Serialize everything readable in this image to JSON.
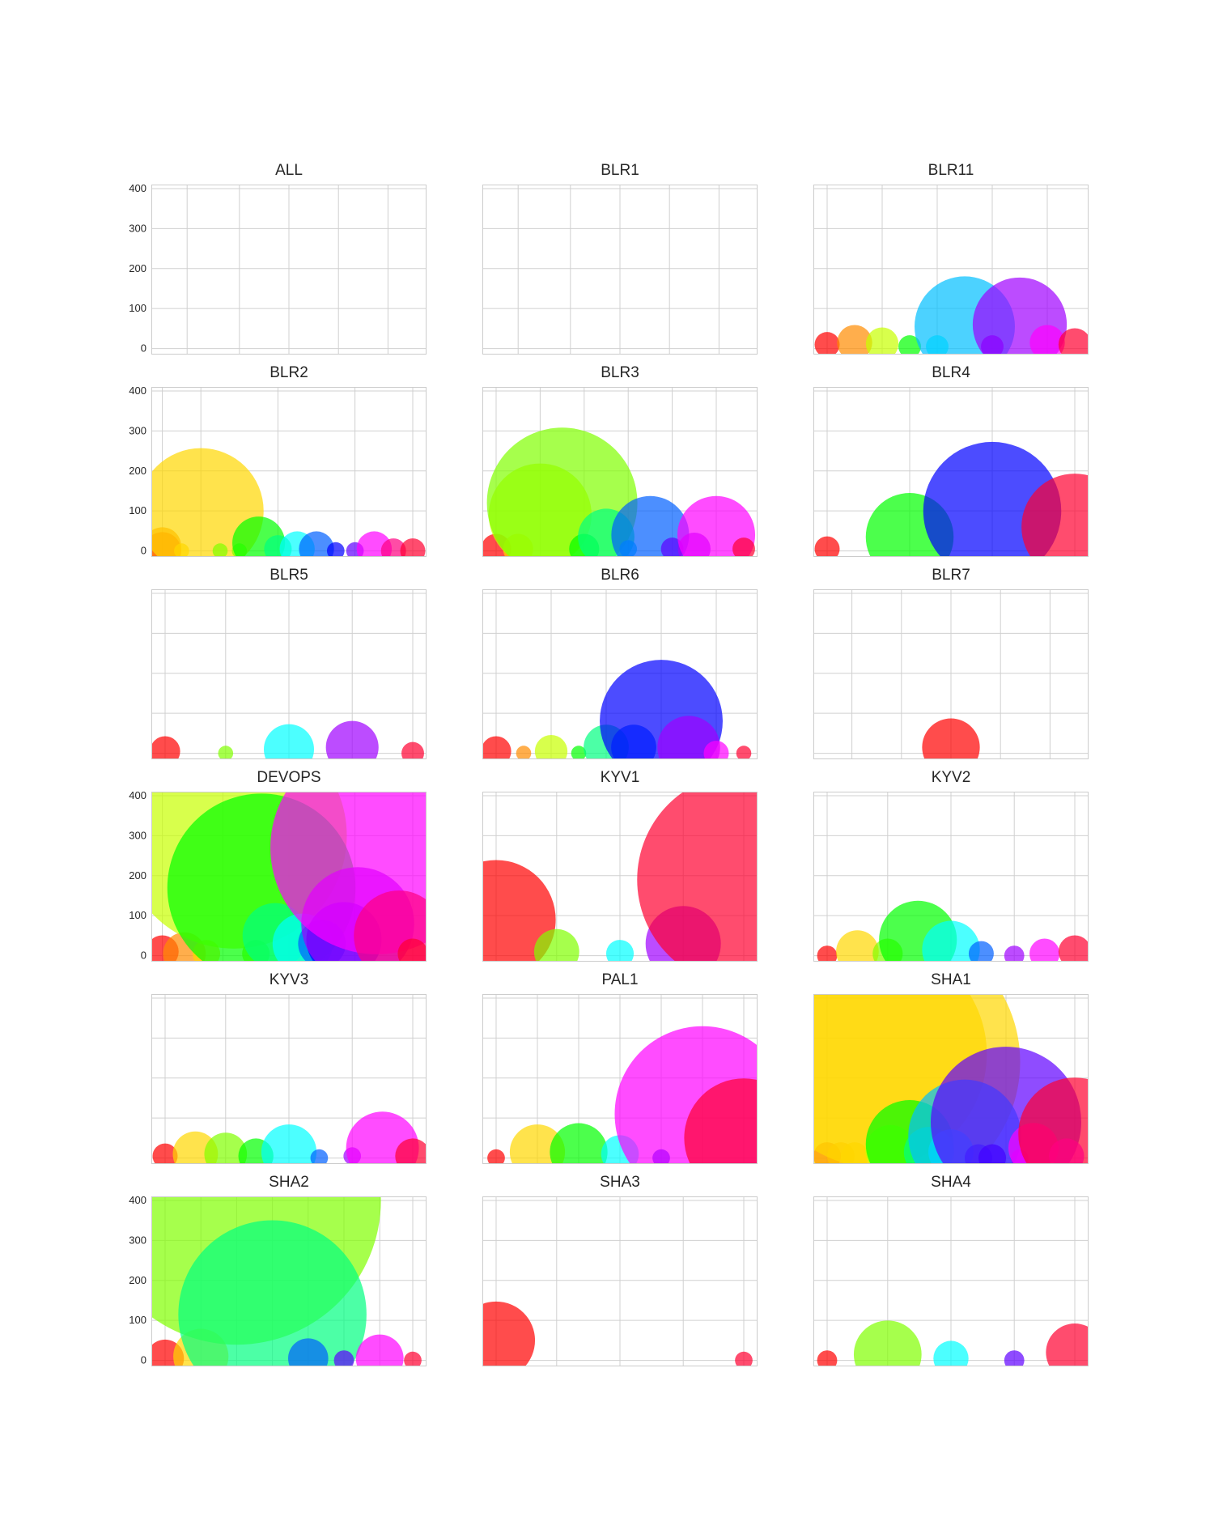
{
  "chart_data": {
    "type": "scatter",
    "style": "bubble-grid",
    "ylim": [
      -15,
      410
    ],
    "yticks": [
      0,
      100,
      200,
      300,
      400
    ],
    "palette": [
      "#ff0000",
      "#ff8c00",
      "#ffd700",
      "#c8ff00",
      "#80ff00",
      "#00ff00",
      "#00ff80",
      "#00ffff",
      "#00bfff",
      "#0060ff",
      "#0000ff",
      "#6000ff",
      "#a000ff",
      "#ff00ff",
      "#ff0080",
      "#ff0030"
    ],
    "panels": [
      {
        "title": "ALL",
        "show_yticks": true,
        "xvlines": [
          0.13,
          0.32,
          0.5,
          0.68,
          0.86
        ],
        "points": []
      },
      {
        "title": "BLR1",
        "show_yticks": false,
        "xvlines": [
          0.13,
          0.32,
          0.5,
          0.68,
          0.86
        ],
        "points": []
      },
      {
        "title": "BLR11",
        "show_yticks": false,
        "xvlines": [
          0.05,
          0.25,
          0.45,
          0.65,
          0.85
        ],
        "points": [
          [
            0.05,
            10,
            0
          ],
          [
            0.15,
            15,
            1
          ],
          [
            0.25,
            12,
            3
          ],
          [
            0.35,
            5,
            5
          ],
          [
            0.45,
            5,
            7
          ],
          [
            0.55,
            55,
            8
          ],
          [
            0.65,
            5,
            11
          ],
          [
            0.75,
            60,
            12
          ],
          [
            0.85,
            15,
            13
          ],
          [
            0.95,
            10,
            15
          ]
        ],
        "sizes": [
          20,
          28,
          26,
          18,
          18,
          80,
          18,
          75,
          28,
          26
        ]
      },
      {
        "title": "BLR2",
        "show_yticks": true,
        "xvlines": [
          0.04,
          0.18,
          0.46,
          0.74,
          0.95
        ],
        "points": [
          [
            0.04,
            0,
            0
          ],
          [
            0.04,
            12,
            1
          ],
          [
            0.11,
            0,
            2
          ],
          [
            0.18,
            100,
            2
          ],
          [
            0.25,
            0,
            4
          ],
          [
            0.32,
            0,
            4
          ],
          [
            0.39,
            20,
            5
          ],
          [
            0.46,
            5,
            6
          ],
          [
            0.53,
            5,
            7
          ],
          [
            0.6,
            5,
            9
          ],
          [
            0.67,
            0,
            10
          ],
          [
            0.74,
            0,
            11
          ],
          [
            0.81,
            5,
            13
          ],
          [
            0.88,
            0,
            14
          ],
          [
            0.95,
            0,
            15
          ]
        ],
        "sizes": [
          30,
          30,
          12,
          100,
          12,
          12,
          42,
          22,
          28,
          28,
          14,
          14,
          28,
          20,
          20
        ]
      },
      {
        "title": "BLR3",
        "show_yticks": false,
        "xvlines": [
          0.05,
          0.21,
          0.37,
          0.53,
          0.69,
          0.85
        ],
        "points": [
          [
            0.05,
            5,
            0
          ],
          [
            0.13,
            5,
            2
          ],
          [
            0.21,
            90,
            3
          ],
          [
            0.29,
            120,
            4
          ],
          [
            0.37,
            5,
            5
          ],
          [
            0.45,
            35,
            6
          ],
          [
            0.53,
            5,
            8
          ],
          [
            0.61,
            40,
            9
          ],
          [
            0.69,
            5,
            11
          ],
          [
            0.77,
            5,
            12
          ],
          [
            0.85,
            40,
            13
          ],
          [
            0.95,
            5,
            15
          ]
        ],
        "sizes": [
          24,
          24,
          82,
          120,
          24,
          45,
          14,
          62,
          18,
          26,
          62,
          18
        ]
      },
      {
        "title": "BLR4",
        "show_yticks": false,
        "xvlines": [
          0.05,
          0.35,
          0.65,
          0.95
        ],
        "points": [
          [
            0.05,
            5,
            0
          ],
          [
            0.35,
            35,
            5
          ],
          [
            0.65,
            100,
            10
          ],
          [
            0.95,
            60,
            15
          ]
        ],
        "sizes": [
          20,
          70,
          110,
          85
        ]
      },
      {
        "title": "BLR5",
        "show_yticks": false,
        "xvlines": [
          0.05,
          0.27,
          0.5,
          0.73,
          0.95
        ],
        "points": [
          [
            0.05,
            5,
            0
          ],
          [
            0.27,
            0,
            4
          ],
          [
            0.5,
            10,
            7
          ],
          [
            0.73,
            15,
            12
          ],
          [
            0.95,
            0,
            15
          ]
        ],
        "sizes": [
          24,
          12,
          40,
          42,
          18
        ]
      },
      {
        "title": "BLR6",
        "show_yticks": false,
        "xvlines": [
          0.05,
          0.25,
          0.45,
          0.65,
          0.85
        ],
        "points": [
          [
            0.05,
            5,
            0
          ],
          [
            0.15,
            0,
            1
          ],
          [
            0.25,
            5,
            3
          ],
          [
            0.35,
            0,
            5
          ],
          [
            0.45,
            15,
            6
          ],
          [
            0.55,
            15,
            9
          ],
          [
            0.65,
            80,
            10
          ],
          [
            0.75,
            15,
            12
          ],
          [
            0.85,
            0,
            13
          ],
          [
            0.95,
            0,
            15
          ]
        ],
        "sizes": [
          24,
          12,
          26,
          12,
          36,
          36,
          98,
          50,
          20,
          12
        ]
      },
      {
        "title": "BLR7",
        "show_yticks": false,
        "xvlines": [
          0.14,
          0.32,
          0.5,
          0.68,
          0.86
        ],
        "points": [
          [
            0.5,
            15,
            0
          ]
        ],
        "sizes": [
          46
        ]
      },
      {
        "title": "DEVOPS",
        "show_yticks": true,
        "xvlines": [
          0.04,
          0.26,
          0.5,
          0.74,
          0.95
        ],
        "points": [
          [
            0.04,
            10,
            0
          ],
          [
            0.12,
            5,
            1
          ],
          [
            0.2,
            5,
            2
          ],
          [
            0.3,
            300,
            3
          ],
          [
            0.38,
            5,
            4
          ],
          [
            0.4,
            170,
            5
          ],
          [
            0.45,
            50,
            6
          ],
          [
            0.55,
            30,
            7
          ],
          [
            0.62,
            30,
            9
          ],
          [
            0.7,
            40,
            10
          ],
          [
            0.75,
            80,
            12
          ],
          [
            0.82,
            270,
            13
          ],
          [
            0.9,
            50,
            14
          ],
          [
            0.95,
            5,
            15
          ]
        ],
        "sizes": [
          26,
          34,
          22,
          180,
          22,
          150,
          52,
          48,
          38,
          60,
          90,
          170,
          72,
          24
        ]
      },
      {
        "title": "KYV1",
        "show_yticks": false,
        "xvlines": [
          0.05,
          0.27,
          0.5,
          0.73,
          0.95
        ],
        "points": [
          [
            0.05,
            90,
            0
          ],
          [
            0.27,
            10,
            4
          ],
          [
            0.5,
            5,
            7
          ],
          [
            0.73,
            30,
            12
          ],
          [
            0.95,
            190,
            15
          ]
        ],
        "sizes": [
          95,
          36,
          22,
          60,
          170
        ]
      },
      {
        "title": "KYV2",
        "show_yticks": false,
        "xvlines": [
          0.05,
          0.27,
          0.5,
          0.73,
          0.95
        ],
        "points": [
          [
            0.05,
            0,
            0
          ],
          [
            0.16,
            10,
            2
          ],
          [
            0.27,
            5,
            4
          ],
          [
            0.38,
            40,
            5
          ],
          [
            0.5,
            15,
            7
          ],
          [
            0.61,
            5,
            9
          ],
          [
            0.73,
            0,
            12
          ],
          [
            0.84,
            5,
            13
          ],
          [
            0.95,
            10,
            15
          ]
        ],
        "sizes": [
          16,
          34,
          24,
          62,
          46,
          20,
          16,
          24,
          26
        ]
      },
      {
        "title": "KYV3",
        "show_yticks": false,
        "xvlines": [
          0.05,
          0.27,
          0.5,
          0.73,
          0.95
        ],
        "points": [
          [
            0.05,
            5,
            0
          ],
          [
            0.16,
            10,
            2
          ],
          [
            0.27,
            10,
            4
          ],
          [
            0.38,
            5,
            5
          ],
          [
            0.5,
            15,
            7
          ],
          [
            0.61,
            0,
            9
          ],
          [
            0.73,
            5,
            12
          ],
          [
            0.84,
            25,
            13
          ],
          [
            0.95,
            5,
            15
          ]
        ],
        "sizes": [
          20,
          36,
          34,
          28,
          44,
          14,
          14,
          58,
          28
        ]
      },
      {
        "title": "PAL1",
        "show_yticks": false,
        "xvlines": [
          0.05,
          0.2,
          0.35,
          0.5,
          0.65,
          0.8,
          0.95
        ],
        "points": [
          [
            0.05,
            0,
            0
          ],
          [
            0.2,
            15,
            2
          ],
          [
            0.35,
            15,
            5
          ],
          [
            0.5,
            10,
            7
          ],
          [
            0.65,
            0,
            10
          ],
          [
            0.8,
            110,
            13
          ],
          [
            0.95,
            50,
            15
          ]
        ],
        "sizes": [
          14,
          44,
          46,
          30,
          14,
          140,
          95
        ]
      },
      {
        "title": "SHA1",
        "show_yticks": false,
        "xvlines": [
          0.05,
          0.7,
          0.95
        ],
        "points": [
          [
            0.05,
            5,
            0
          ],
          [
            0.1,
            5,
            1
          ],
          [
            0.15,
            5,
            2
          ],
          [
            0.22,
            260,
            2
          ],
          [
            0.25,
            240,
            2
          ],
          [
            0.28,
            20,
            3
          ],
          [
            0.35,
            35,
            5
          ],
          [
            0.42,
            15,
            6
          ],
          [
            0.5,
            15,
            7
          ],
          [
            0.55,
            55,
            8
          ],
          [
            0.6,
            0,
            9
          ],
          [
            0.65,
            0,
            10
          ],
          [
            0.7,
            90,
            11
          ],
          [
            0.75,
            0,
            12
          ],
          [
            0.8,
            25,
            13
          ],
          [
            0.95,
            60,
            15
          ],
          [
            0.92,
            5,
            14
          ]
        ],
        "sizes": [
          22,
          22,
          22,
          180,
          220,
          40,
          70,
          40,
          36,
          90,
          22,
          22,
          120,
          14,
          40,
          90,
          28
        ]
      },
      {
        "title": "SHA2",
        "show_yticks": true,
        "xvlines": [
          0.05,
          0.18,
          0.31,
          0.44,
          0.57,
          0.7,
          0.83,
          0.95
        ],
        "points": [
          [
            0.05,
            5,
            0
          ],
          [
            0.18,
            10,
            2
          ],
          [
            0.31,
            400,
            4
          ],
          [
            0.44,
            115,
            6
          ],
          [
            0.57,
            5,
            9
          ],
          [
            0.7,
            0,
            11
          ],
          [
            0.83,
            5,
            13
          ],
          [
            0.95,
            0,
            15
          ]
        ],
        "sizes": [
          30,
          44,
          230,
          150,
          32,
          16,
          38,
          14
        ]
      },
      {
        "title": "SHA3",
        "show_yticks": false,
        "xvlines": [
          0.05,
          0.27,
          0.5,
          0.73,
          0.95
        ],
        "points": [
          [
            0.05,
            50,
            0
          ],
          [
            0.95,
            0,
            15
          ]
        ],
        "sizes": [
          62,
          14
        ]
      },
      {
        "title": "SHA4",
        "show_yticks": false,
        "xvlines": [
          0.05,
          0.27,
          0.5,
          0.73,
          0.95
        ],
        "points": [
          [
            0.05,
            0,
            0
          ],
          [
            0.27,
            15,
            4
          ],
          [
            0.5,
            5,
            7
          ],
          [
            0.73,
            0,
            11
          ],
          [
            0.95,
            20,
            15
          ]
        ],
        "sizes": [
          16,
          54,
          28,
          16,
          46
        ]
      }
    ]
  }
}
